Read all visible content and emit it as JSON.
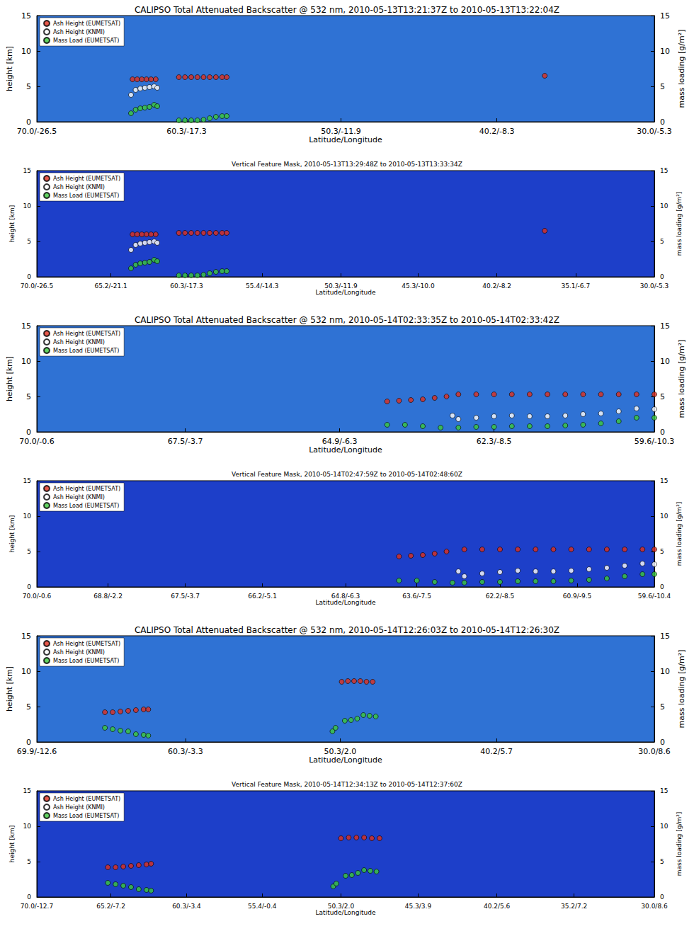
{
  "chart_data": [
    {
      "type": "scatter",
      "title": "CALIPSO Total Attenuated Backscatter @ 532 nm, 2010-05-13T13:21:37Z to 2010-05-13T13:22:04Z",
      "xlabel": "Latitude/Longitude",
      "ylabel": "height [km]",
      "y2label": "mass loading [g/m²]",
      "xlim": [
        70.0,
        30.0
      ],
      "xticks": [
        {
          "value": 70.0,
          "label": "70.0/-26.5"
        },
        {
          "value": 60.3,
          "label": "60.3/-17.3"
        },
        {
          "value": 50.3,
          "label": "50.3/-11.9"
        },
        {
          "value": 40.2,
          "label": "40.2/-8.3"
        },
        {
          "value": 30.0,
          "label": "30.0/-5.3"
        }
      ],
      "ylim": [
        0,
        15
      ],
      "yticks": [
        0,
        5,
        10,
        15
      ],
      "y2lim": [
        0,
        15
      ],
      "y2ticks": [
        0,
        5,
        10,
        15
      ],
      "grid": false,
      "legend": "upper left",
      "marker": "circle",
      "series": [
        {
          "name": "Ash Height (EUMETSAT)",
          "color": "#e0301e",
          "x": [
            63.8,
            63.5,
            63.2,
            62.9,
            62.6,
            62.3,
            60.8,
            60.4,
            60.0,
            59.6,
            59.2,
            58.8,
            58.4,
            58.0,
            57.7,
            37.1
          ],
          "values": [
            6.0,
            6.0,
            6.0,
            6.0,
            6.0,
            6.0,
            6.3,
            6.3,
            6.3,
            6.3,
            6.3,
            6.3,
            6.3,
            6.3,
            6.3,
            6.5
          ]
        },
        {
          "name": "Ash Height (KNMI)",
          "color": "#ffffff",
          "x": [
            63.9,
            63.6,
            63.3,
            63.0,
            62.7,
            62.4,
            62.2
          ],
          "values": [
            3.8,
            4.5,
            4.7,
            4.8,
            4.9,
            5.0,
            4.8
          ]
        },
        {
          "name": "Mass Load (EUMETSAT)",
          "color": "#3cc83c",
          "axis": "y2",
          "x": [
            63.9,
            63.6,
            63.3,
            63.0,
            62.7,
            62.4,
            62.2,
            60.8,
            60.4,
            60.0,
            59.6,
            59.2,
            58.8,
            58.4,
            58.0,
            57.7
          ],
          "values": [
            1.2,
            1.7,
            1.9,
            2.0,
            2.1,
            2.4,
            2.2,
            0.2,
            0.2,
            0.2,
            0.2,
            0.3,
            0.5,
            0.7,
            0.8,
            0.8
          ]
        }
      ]
    },
    {
      "type": "scatter",
      "title": "Vertical Feature Mask, 2010-05-13T13:29:48Z to 2010-05-13T13:33:34Z",
      "xlabel": "Latitude/Longitude",
      "ylabel": "height [km]",
      "y2label": "mass loading [g/m²]",
      "xlim": [
        70.0,
        30.0
      ],
      "xticks": [
        {
          "value": 70.0,
          "label": "70.0/-26.5"
        },
        {
          "value": 65.2,
          "label": "65.2/-21.1"
        },
        {
          "value": 60.3,
          "label": "60.3/-17.3"
        },
        {
          "value": 55.4,
          "label": "55.4/-14.3"
        },
        {
          "value": 50.3,
          "label": "50.3/-11.9"
        },
        {
          "value": 45.3,
          "label": "45.3/-10.0"
        },
        {
          "value": 40.2,
          "label": "40.2/-8.2"
        },
        {
          "value": 35.1,
          "label": "35.1/-6.7"
        },
        {
          "value": 30.0,
          "label": "30.0/-5.3"
        }
      ],
      "ylim": [
        0,
        15
      ],
      "yticks": [
        0,
        5,
        10,
        15
      ],
      "y2lim": [
        0,
        15
      ],
      "y2ticks": [
        0,
        5,
        10,
        15
      ],
      "grid": false,
      "legend": "upper left",
      "marker": "circle",
      "series": [
        {
          "name": "Ash Height (EUMETSAT)",
          "color": "#e0301e",
          "x": [
            63.8,
            63.5,
            63.2,
            62.9,
            62.6,
            62.3,
            60.8,
            60.4,
            60.0,
            59.6,
            59.2,
            58.8,
            58.4,
            58.0,
            57.7,
            37.1
          ],
          "values": [
            6.0,
            6.0,
            6.0,
            6.0,
            6.0,
            6.0,
            6.2,
            6.2,
            6.2,
            6.2,
            6.2,
            6.2,
            6.2,
            6.2,
            6.2,
            6.5
          ]
        },
        {
          "name": "Ash Height (KNMI)",
          "color": "#ffffff",
          "x": [
            63.9,
            63.6,
            63.3,
            63.0,
            62.7,
            62.4,
            62.2
          ],
          "values": [
            3.8,
            4.5,
            4.7,
            4.8,
            4.9,
            5.0,
            4.8
          ]
        },
        {
          "name": "Mass Load (EUMETSAT)",
          "color": "#3cc83c",
          "axis": "y2",
          "x": [
            63.9,
            63.6,
            63.3,
            63.0,
            62.7,
            62.4,
            62.2,
            60.8,
            60.4,
            60.0,
            59.6,
            59.2,
            58.8,
            58.4,
            58.0,
            57.7
          ],
          "values": [
            1.2,
            1.7,
            1.9,
            2.0,
            2.1,
            2.4,
            2.2,
            0.2,
            0.2,
            0.2,
            0.2,
            0.3,
            0.5,
            0.7,
            0.8,
            0.8
          ]
        }
      ]
    },
    {
      "type": "scatter",
      "title": "CALIPSO Total Attenuated Backscatter @ 532 nm, 2010-05-14T02:33:35Z to 2010-05-14T02:33:42Z",
      "xlabel": "Latitude/Longitude",
      "ylabel": "height [km]",
      "y2label": "mass loading [g/m²]",
      "xlim": [
        70.0,
        59.6
      ],
      "xticks": [
        {
          "value": 70.0,
          "label": "70.0/-0.6"
        },
        {
          "value": 67.5,
          "label": "67.5/-3.7"
        },
        {
          "value": 64.9,
          "label": "64.9/-6.3"
        },
        {
          "value": 62.3,
          "label": "62.3/-8.5"
        },
        {
          "value": 59.6,
          "label": "59.6/-10.3"
        }
      ],
      "ylim": [
        0,
        15
      ],
      "yticks": [
        0,
        5,
        10,
        15
      ],
      "y2lim": [
        0,
        15
      ],
      "y2ticks": [
        0,
        5,
        10,
        15
      ],
      "grid": false,
      "legend": "upper left",
      "marker": "circle",
      "series": [
        {
          "name": "Ash Height (EUMETSAT)",
          "color": "#e0301e",
          "x": [
            64.1,
            63.9,
            63.7,
            63.5,
            63.3,
            63.1,
            62.9,
            62.6,
            62.3,
            62.0,
            61.7,
            61.4,
            61.1,
            60.8,
            60.5,
            60.2,
            59.9,
            59.6
          ],
          "values": [
            4.3,
            4.4,
            4.5,
            4.6,
            4.8,
            5.0,
            5.3,
            5.3,
            5.3,
            5.3,
            5.3,
            5.3,
            5.3,
            5.3,
            5.3,
            5.3,
            5.3,
            5.3
          ]
        },
        {
          "name": "Ash Height (KNMI)",
          "color": "#ffffff",
          "x": [
            63.0,
            62.9,
            62.6,
            62.3,
            62.0,
            61.7,
            61.4,
            61.1,
            60.8,
            60.5,
            60.2,
            59.9,
            59.6
          ],
          "values": [
            2.3,
            1.8,
            2.0,
            2.2,
            2.3,
            2.2,
            2.2,
            2.3,
            2.5,
            2.6,
            2.9,
            3.3,
            3.2
          ]
        },
        {
          "name": "Mass Load (EUMETSAT)",
          "color": "#3cc83c",
          "axis": "y2",
          "x": [
            64.1,
            63.8,
            63.5,
            63.2,
            62.9,
            62.6,
            62.3,
            62.0,
            61.7,
            61.4,
            61.1,
            60.8,
            60.5,
            60.2,
            59.9,
            59.6
          ],
          "values": [
            1.0,
            1.0,
            0.8,
            0.6,
            0.6,
            0.7,
            0.7,
            0.8,
            0.8,
            0.8,
            0.9,
            1.0,
            1.2,
            1.5,
            2.0,
            2.0
          ]
        }
      ]
    },
    {
      "type": "scatter",
      "title": "Vertical Feature Mask, 2010-05-14T02:47:59Z to 2010-05-14T02:48:60Z",
      "xlabel": "Latitude/Longitude",
      "ylabel": "height [km]",
      "y2label": "mass loading [g/m²]",
      "xlim": [
        70.0,
        59.6
      ],
      "xticks": [
        {
          "value": 70.0,
          "label": "70.0/-0.6"
        },
        {
          "value": 68.8,
          "label": "68.8/-2.2"
        },
        {
          "value": 67.5,
          "label": "67.5/-3.7"
        },
        {
          "value": 66.2,
          "label": "66.2/-5.1"
        },
        {
          "value": 64.8,
          "label": "64.8/-6.3"
        },
        {
          "value": 63.6,
          "label": "63.6/-7.5"
        },
        {
          "value": 62.2,
          "label": "62.2/-8.5"
        },
        {
          "value": 60.9,
          "label": "60.9/-9.5"
        },
        {
          "value": 59.6,
          "label": "59.6/-10.4"
        }
      ],
      "ylim": [
        0,
        15
      ],
      "yticks": [
        0,
        5,
        10,
        15
      ],
      "y2lim": [
        0,
        15
      ],
      "y2ticks": [
        0,
        5,
        10,
        15
      ],
      "grid": false,
      "legend": "upper left",
      "marker": "circle",
      "series": [
        {
          "name": "Ash Height (EUMETSAT)",
          "color": "#e0301e",
          "x": [
            63.9,
            63.7,
            63.5,
            63.3,
            63.1,
            62.8,
            62.5,
            62.2,
            61.9,
            61.6,
            61.3,
            61.0,
            60.7,
            60.4,
            60.1,
            59.8,
            59.6
          ],
          "values": [
            4.3,
            4.4,
            4.5,
            4.7,
            5.0,
            5.3,
            5.3,
            5.3,
            5.3,
            5.3,
            5.3,
            5.3,
            5.3,
            5.3,
            5.3,
            5.3,
            5.3
          ]
        },
        {
          "name": "Ash Height (KNMI)",
          "color": "#ffffff",
          "x": [
            62.9,
            62.8,
            62.5,
            62.2,
            61.9,
            61.6,
            61.3,
            61.0,
            60.7,
            60.4,
            60.1,
            59.8,
            59.6
          ],
          "values": [
            2.2,
            1.5,
            1.9,
            2.1,
            2.3,
            2.2,
            2.2,
            2.3,
            2.5,
            2.7,
            3.0,
            3.3,
            3.2
          ]
        },
        {
          "name": "Mass Load (EUMETSAT)",
          "color": "#3cc83c",
          "axis": "y2",
          "x": [
            63.9,
            63.6,
            63.3,
            63.0,
            62.8,
            62.5,
            62.2,
            61.9,
            61.6,
            61.3,
            61.0,
            60.7,
            60.4,
            60.1,
            59.8,
            59.6
          ],
          "values": [
            0.9,
            0.9,
            0.7,
            0.6,
            0.6,
            0.7,
            0.7,
            0.8,
            0.8,
            0.8,
            0.9,
            1.0,
            1.2,
            1.5,
            1.8,
            1.8
          ]
        }
      ]
    },
    {
      "type": "scatter",
      "title": "CALIPSO Total Attenuated Backscatter @ 532 nm, 2010-05-14T12:26:03Z to 2010-05-14T12:26:30Z",
      "xlabel": "Latitude/Longitude",
      "ylabel": "height [km]",
      "y2label": "mass loading [g/m²]",
      "xlim": [
        69.9,
        30.0
      ],
      "xticks": [
        {
          "value": 69.9,
          "label": "69.9/-12.6"
        },
        {
          "value": 60.3,
          "label": "60.3/-3.3"
        },
        {
          "value": 50.3,
          "label": "50.3/2.0"
        },
        {
          "value": 40.2,
          "label": "40.2/5.7"
        },
        {
          "value": 30.0,
          "label": "30.0/8.6"
        }
      ],
      "ylim": [
        0,
        15
      ],
      "yticks": [
        0,
        5,
        10,
        15
      ],
      "y2lim": [
        0,
        15
      ],
      "y2ticks": [
        0,
        5,
        10,
        15
      ],
      "grid": false,
      "legend": "upper left",
      "marker": "circle",
      "series": [
        {
          "name": "Ash Height (EUMETSAT)",
          "color": "#e0301e",
          "x": [
            65.5,
            65.0,
            64.5,
            64.0,
            63.5,
            63.0,
            62.7,
            50.2,
            49.8,
            49.4,
            49.0,
            48.6,
            48.2
          ],
          "values": [
            4.2,
            4.2,
            4.3,
            4.4,
            4.5,
            4.6,
            4.6,
            8.5,
            8.6,
            8.6,
            8.6,
            8.5,
            8.5
          ]
        },
        {
          "name": "Ash Height (KNMI)",
          "color": "#ffffff",
          "x": [],
          "values": []
        },
        {
          "name": "Mass Load (EUMETSAT)",
          "color": "#3cc83c",
          "axis": "y2",
          "x": [
            65.5,
            65.0,
            64.5,
            64.0,
            63.5,
            63.0,
            62.7,
            50.8,
            50.6,
            50.0,
            49.6,
            49.2,
            48.8,
            48.4,
            48.0
          ],
          "values": [
            2.0,
            1.8,
            1.6,
            1.5,
            1.1,
            1.0,
            0.9,
            1.5,
            2.0,
            3.0,
            3.1,
            3.3,
            3.8,
            3.7,
            3.6
          ]
        }
      ]
    },
    {
      "type": "scatter",
      "title": "Vertical Feature Mask, 2010-05-14T12:34:13Z to 2010-05-14T12:37:60Z",
      "xlabel": "Latitude/Longitude",
      "ylabel": "height [km]",
      "y2label": "mass loading [g/m²]",
      "xlim": [
        70.0,
        30.0
      ],
      "xticks": [
        {
          "value": 70.0,
          "label": "70.0/-12.7"
        },
        {
          "value": 65.2,
          "label": "65.2/-7.2"
        },
        {
          "value": 60.3,
          "label": "60.3/-3.4"
        },
        {
          "value": 55.4,
          "label": "55.4/-0.4"
        },
        {
          "value": 50.3,
          "label": "50.3/2.0"
        },
        {
          "value": 45.3,
          "label": "45.3/3.9"
        },
        {
          "value": 40.2,
          "label": "40.2/5.6"
        },
        {
          "value": 35.2,
          "label": "35.2/7.2"
        },
        {
          "value": 30.0,
          "label": "30.0/8.6"
        }
      ],
      "ylim": [
        0,
        15
      ],
      "yticks": [
        0,
        5,
        10,
        15
      ],
      "y2lim": [
        0,
        15
      ],
      "y2ticks": [
        0,
        5,
        10,
        15
      ],
      "grid": false,
      "legend": "upper left",
      "marker": "circle",
      "series": [
        {
          "name": "Ash Height (EUMETSAT)",
          "color": "#e0301e",
          "x": [
            65.4,
            64.9,
            64.4,
            63.9,
            63.4,
            62.9,
            62.6,
            50.3,
            49.8,
            49.3,
            48.8,
            48.3,
            47.8
          ],
          "values": [
            4.2,
            4.2,
            4.3,
            4.4,
            4.5,
            4.6,
            4.7,
            8.3,
            8.4,
            8.4,
            8.4,
            8.3,
            8.3
          ]
        },
        {
          "name": "Ash Height (KNMI)",
          "color": "#ffffff",
          "x": [],
          "values": []
        },
        {
          "name": "Mass Load (EUMETSAT)",
          "color": "#3cc83c",
          "axis": "y2",
          "x": [
            65.4,
            64.9,
            64.4,
            63.9,
            63.4,
            62.9,
            62.6,
            50.8,
            50.6,
            50.0,
            49.6,
            49.2,
            48.8,
            48.4,
            48.0
          ],
          "values": [
            2.0,
            1.8,
            1.6,
            1.4,
            1.1,
            1.0,
            0.9,
            1.5,
            1.9,
            3.0,
            3.1,
            3.4,
            3.8,
            3.7,
            3.6
          ]
        }
      ]
    }
  ]
}
